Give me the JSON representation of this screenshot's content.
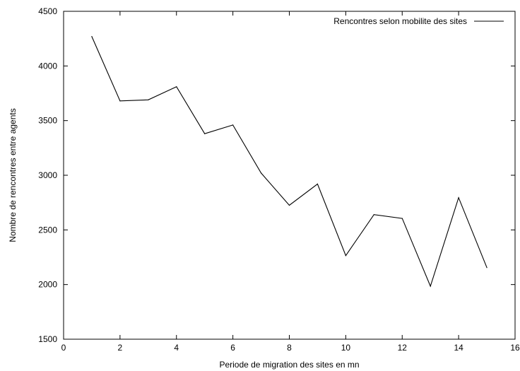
{
  "chart_data": {
    "type": "line",
    "xlabel": "Periode de migration des sites en mn",
    "ylabel": "Nombre de rencontres entre agents",
    "xlim": [
      0,
      16
    ],
    "ylim": [
      1500,
      4500
    ],
    "x_ticks": [
      0,
      2,
      4,
      6,
      8,
      10,
      12,
      14,
      16
    ],
    "y_ticks": [
      1500,
      2000,
      2500,
      3000,
      3500,
      4000,
      4500
    ],
    "grid": false,
    "legend_position": "top-right",
    "series": [
      {
        "name": "Rencontres selon mobilite des sites",
        "color": "#000000",
        "x": [
          1,
          2,
          3,
          4,
          5,
          6,
          7,
          8,
          9,
          10,
          11,
          12,
          13,
          14,
          15
        ],
        "y": [
          4270,
          3680,
          3690,
          3810,
          3380,
          3460,
          3020,
          2725,
          2920,
          2265,
          2640,
          2605,
          1985,
          2795,
          2155
        ]
      }
    ]
  }
}
